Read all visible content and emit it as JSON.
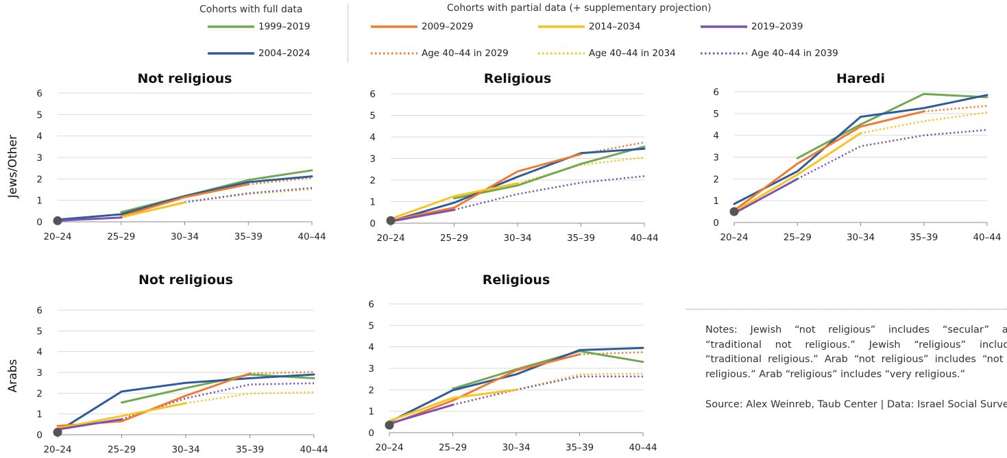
{
  "legend": {
    "full_header": "Cohorts with full data",
    "partial_header": "Cohorts with partial data (+ supplementary projection)",
    "items": [
      {
        "label": "1999–2019",
        "color": "#70a950",
        "style": "solid"
      },
      {
        "label": "2004–2024",
        "color": "#2e5b9e",
        "style": "solid"
      },
      {
        "label": "2009–2029",
        "color": "#ef7a30",
        "style": "solid"
      },
      {
        "label": "Age 40–44 in 2029",
        "color": "#ef7a30",
        "style": "dotted"
      },
      {
        "label": "2014–2034",
        "color": "#f7c31c",
        "style": "solid"
      },
      {
        "label": "Age 40–44 in 2034",
        "color": "#f7c31c",
        "style": "dotted"
      },
      {
        "label": "2019–2039",
        "color": "#7a52b3",
        "style": "solid"
      },
      {
        "label": "Age 40–44 in 2039",
        "color": "#7a52b3",
        "style": "dotted"
      }
    ]
  },
  "row_labels": {
    "jews": "Jews/Other",
    "arabs": "Arabs"
  },
  "notes": "Notes: Jewish “not religious” includes “secular” and “traditional not religious.” Jewish “religious” includes “traditional religious.” Arab “not religious” includes “not so religious.” Arab “religious” includes “very religious.”",
  "source": "Source: Alex Weinreb, Taub Center | Data: Israel Social Survey",
  "chart_data": [
    {
      "type": "line",
      "title": "Not religious",
      "group": "Jews/Other",
      "categories": [
        "20–24",
        "25–29",
        "30–34",
        "35–39",
        "40–44"
      ],
      "ylim": [
        0,
        6
      ],
      "yticks": [
        0,
        1,
        2,
        3,
        4,
        5,
        6
      ],
      "grid": true,
      "start_marker": [
        0,
        0.05
      ],
      "series": [
        {
          "color": "#70a950",
          "style": "solid",
          "points": [
            [
              1,
              0.45
            ],
            [
              2,
              1.2
            ],
            [
              3,
              1.95
            ],
            [
              4,
              2.4
            ]
          ]
        },
        {
          "color": "#2e5b9e",
          "style": "solid",
          "points": [
            [
              0,
              0.1
            ],
            [
              1,
              0.35
            ],
            [
              2,
              1.2
            ],
            [
              3,
              1.85
            ],
            [
              4,
              2.12
            ]
          ]
        },
        {
          "color": "#ef7a30",
          "style": "solid",
          "points": [
            [
              1,
              0.25
            ],
            [
              2,
              1.15
            ],
            [
              3,
              1.75
            ]
          ]
        },
        {
          "color": "#ef7a30",
          "style": "dotted",
          "points": [
            [
              3,
              1.75
            ],
            [
              4,
              2.05
            ]
          ]
        },
        {
          "color": "#f7c31c",
          "style": "solid",
          "points": [
            [
              1,
              0.22
            ],
            [
              2,
              0.9
            ]
          ]
        },
        {
          "color": "#f7c31c",
          "style": "dotted",
          "points": [
            [
              2,
              0.9
            ],
            [
              3,
              1.3
            ],
            [
              4,
              1.52
            ]
          ]
        },
        {
          "color": "#7a52b3",
          "style": "solid",
          "points": [
            [
              0,
              0.05
            ],
            [
              1,
              0.2
            ]
          ]
        },
        {
          "color": "#7a52b3",
          "style": "dotted",
          "points": [
            [
              1,
              0.2
            ],
            [
              2,
              0.92
            ],
            [
              3,
              1.33
            ],
            [
              4,
              1.58
            ]
          ]
        }
      ]
    },
    {
      "type": "line",
      "title": "Religious",
      "group": "Jews/Other",
      "categories": [
        "20–24",
        "25–29",
        "30–34",
        "35–39",
        "40–44"
      ],
      "ylim": [
        0,
        6
      ],
      "yticks": [
        0,
        1,
        2,
        3,
        4,
        5,
        6
      ],
      "grid": true,
      "start_marker": [
        0,
        0.12
      ],
      "series": [
        {
          "color": "#70a950",
          "style": "solid",
          "points": [
            [
              1,
              1.15
            ],
            [
              2,
              1.75
            ],
            [
              3,
              2.75
            ],
            [
              4,
              3.55
            ]
          ]
        },
        {
          "color": "#2e5b9e",
          "style": "solid",
          "points": [
            [
              0,
              0.1
            ],
            [
              1,
              0.95
            ],
            [
              2,
              2.15
            ],
            [
              3,
              3.25
            ],
            [
              4,
              3.45
            ]
          ]
        },
        {
          "color": "#ef7a30",
          "style": "solid",
          "points": [
            [
              0,
              0.12
            ],
            [
              1,
              0.72
            ],
            [
              2,
              2.4
            ],
            [
              3,
              3.2
            ]
          ]
        },
        {
          "color": "#ef7a30",
          "style": "dotted",
          "points": [
            [
              3,
              3.2
            ],
            [
              4,
              3.75
            ]
          ]
        },
        {
          "color": "#f7c31c",
          "style": "solid",
          "points": [
            [
              0,
              0.2
            ],
            [
              1,
              1.25
            ],
            [
              2,
              1.85
            ]
          ]
        },
        {
          "color": "#f7c31c",
          "style": "dotted",
          "points": [
            [
              2,
              1.85
            ],
            [
              3,
              2.7
            ],
            [
              4,
              3.05
            ]
          ]
        },
        {
          "color": "#7a52b3",
          "style": "solid",
          "points": [
            [
              0,
              0.08
            ],
            [
              1,
              0.62
            ]
          ]
        },
        {
          "color": "#7a52b3",
          "style": "dotted",
          "points": [
            [
              1,
              0.62
            ],
            [
              2,
              1.35
            ],
            [
              3,
              1.88
            ],
            [
              4,
              2.18
            ]
          ]
        }
      ]
    },
    {
      "type": "line",
      "title": "Haredi",
      "group": "Jews/Other",
      "categories": [
        "20–24",
        "25–29",
        "30–34",
        "35–39",
        "40–44"
      ],
      "ylim": [
        0,
        6
      ],
      "yticks": [
        0,
        1,
        2,
        3,
        4,
        5,
        6
      ],
      "grid": true,
      "start_marker": [
        0,
        0.5
      ],
      "series": [
        {
          "color": "#70a950",
          "style": "solid",
          "points": [
            [
              1,
              2.95
            ],
            [
              2,
              4.5
            ],
            [
              3,
              5.9
            ],
            [
              4,
              5.75
            ]
          ]
        },
        {
          "color": "#2e5b9e",
          "style": "solid",
          "points": [
            [
              0,
              0.85
            ],
            [
              1,
              2.35
            ],
            [
              2,
              4.85
            ],
            [
              3,
              5.25
            ],
            [
              4,
              5.85
            ]
          ]
        },
        {
          "color": "#ef7a30",
          "style": "solid",
          "points": [
            [
              0,
              0.55
            ],
            [
              1,
              2.7
            ],
            [
              2,
              4.4
            ],
            [
              3,
              5.1
            ]
          ]
        },
        {
          "color": "#ef7a30",
          "style": "dotted",
          "points": [
            [
              3,
              5.1
            ],
            [
              4,
              5.35
            ]
          ]
        },
        {
          "color": "#f7c31c",
          "style": "solid",
          "points": [
            [
              0,
              0.5
            ],
            [
              1,
              2.2
            ],
            [
              2,
              4.1
            ]
          ]
        },
        {
          "color": "#f7c31c",
          "style": "dotted",
          "points": [
            [
              2,
              4.1
            ],
            [
              3,
              4.65
            ],
            [
              4,
              5.05
            ]
          ]
        },
        {
          "color": "#7a52b3",
          "style": "solid",
          "points": [
            [
              0,
              0.42
            ],
            [
              1,
              2.0
            ]
          ]
        },
        {
          "color": "#7a52b3",
          "style": "dotted",
          "points": [
            [
              1,
              2.0
            ],
            [
              2,
              3.5
            ],
            [
              3,
              4.0
            ],
            [
              4,
              4.25
            ]
          ]
        }
      ]
    },
    {
      "type": "line",
      "title": "Not religious",
      "group": "Arabs",
      "categories": [
        "20–24",
        "25–29",
        "30–34",
        "35–39",
        "40–44"
      ],
      "ylim": [
        0,
        6
      ],
      "yticks": [
        0,
        1,
        2,
        3,
        4,
        5,
        6
      ],
      "grid": true,
      "start_marker": [
        0,
        0.12
      ],
      "series": [
        {
          "color": "#70a950",
          "style": "solid",
          "points": [
            [
              1,
              1.55
            ],
            [
              2,
              2.25
            ],
            [
              3,
              2.9
            ],
            [
              4,
              2.72
            ]
          ]
        },
        {
          "color": "#2e5b9e",
          "style": "solid",
          "points": [
            [
              0,
              0.15
            ],
            [
              1,
              2.08
            ],
            [
              2,
              2.5
            ],
            [
              3,
              2.72
            ],
            [
              4,
              2.9
            ]
          ]
        },
        {
          "color": "#ef7a30",
          "style": "solid",
          "points": [
            [
              0,
              0.42
            ],
            [
              1,
              0.65
            ],
            [
              2,
              1.88
            ],
            [
              3,
              2.95
            ]
          ]
        },
        {
          "color": "#ef7a30",
          "style": "dotted",
          "points": [
            [
              3,
              2.95
            ],
            [
              4,
              3.02
            ]
          ]
        },
        {
          "color": "#f7c31c",
          "style": "solid",
          "points": [
            [
              0,
              0.3
            ],
            [
              1,
              0.9
            ],
            [
              2,
              1.52
            ]
          ]
        },
        {
          "color": "#f7c31c",
          "style": "dotted",
          "points": [
            [
              2,
              1.52
            ],
            [
              3,
              1.98
            ],
            [
              4,
              2.05
            ]
          ]
        },
        {
          "color": "#7a52b3",
          "style": "solid",
          "points": [
            [
              0,
              0.25
            ],
            [
              1,
              0.75
            ]
          ]
        },
        {
          "color": "#7a52b3",
          "style": "dotted",
          "points": [
            [
              1,
              0.75
            ],
            [
              2,
              1.75
            ],
            [
              3,
              2.42
            ],
            [
              4,
              2.48
            ]
          ]
        }
      ]
    },
    {
      "type": "line",
      "title": "Religious",
      "group": "Arabs",
      "categories": [
        "20–24",
        "25–29",
        "30–34",
        "35–39",
        "40–44"
      ],
      "ylim": [
        0,
        6
      ],
      "yticks": [
        0,
        1,
        2,
        3,
        4,
        5,
        6
      ],
      "grid": true,
      "start_marker": [
        0,
        0.35
      ],
      "series": [
        {
          "color": "#70a950",
          "style": "solid",
          "points": [
            [
              1,
              2.05
            ],
            [
              2,
              2.95
            ],
            [
              3,
              3.8
            ],
            [
              4,
              3.3
            ]
          ]
        },
        {
          "color": "#2e5b9e",
          "style": "solid",
          "points": [
            [
              0,
              0.5
            ],
            [
              1,
              1.98
            ],
            [
              2,
              2.72
            ],
            [
              3,
              3.85
            ],
            [
              4,
              3.95
            ]
          ]
        },
        {
          "color": "#ef7a30",
          "style": "solid",
          "points": [
            [
              0,
              0.38
            ],
            [
              1,
              1.5
            ],
            [
              2,
              2.9
            ],
            [
              3,
              3.65
            ]
          ]
        },
        {
          "color": "#ef7a30",
          "style": "dotted",
          "points": [
            [
              3,
              3.65
            ],
            [
              4,
              3.75
            ]
          ]
        },
        {
          "color": "#f7c31c",
          "style": "solid",
          "points": [
            [
              0,
              0.55
            ],
            [
              1,
              1.62
            ],
            [
              2,
              2.0
            ]
          ]
        },
        {
          "color": "#f7c31c",
          "style": "dotted",
          "points": [
            [
              2,
              2.0
            ],
            [
              3,
              2.72
            ],
            [
              4,
              2.75
            ]
          ]
        },
        {
          "color": "#7a52b3",
          "style": "solid",
          "points": [
            [
              0,
              0.42
            ],
            [
              1,
              1.3
            ]
          ]
        },
        {
          "color": "#7a52b3",
          "style": "dotted",
          "points": [
            [
              1,
              1.3
            ],
            [
              2,
              2.0
            ],
            [
              3,
              2.62
            ],
            [
              4,
              2.62
            ]
          ]
        }
      ]
    }
  ]
}
